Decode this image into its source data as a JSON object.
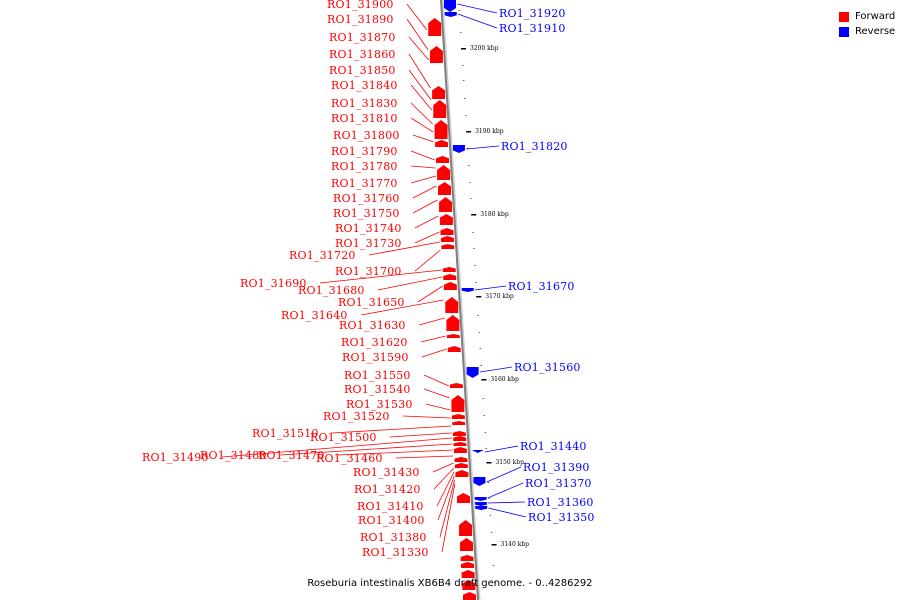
{
  "caption": "Roseburia intestinalis XB6B4 draft genome. - 0..4286292",
  "legend": [
    {
      "label": "Forward",
      "color": "#ff0000"
    },
    {
      "label": "Reverse",
      "color": "#0000ff"
    }
  ],
  "colors": {
    "forward": "#ff0000",
    "reverse": "#0000ff",
    "backbone": "#7f7f7f"
  },
  "kbp_labels": [
    "3200 kbp",
    "3190 kbp",
    "3180 kbp",
    "3170 kbp",
    "3160 kbp",
    "3150 kbp",
    "3140 kbp"
  ],
  "forward_genes": [
    "RO1_31900",
    "RO1_31890",
    "RO1_31870",
    "RO1_31860",
    "RO1_31850",
    "RO1_31840",
    "RO1_31830",
    "RO1_31810",
    "RO1_31800",
    "RO1_31790",
    "RO1_31780",
    "RO1_31770",
    "RO1_31760",
    "RO1_31750",
    "RO1_31740",
    "RO1_31730",
    "RO1_31720",
    "RO1_31700",
    "RO1_31690",
    "RO1_31680",
    "RO1_31650",
    "RO1_31640",
    "RO1_31630",
    "RO1_31620",
    "RO1_31590",
    "RO1_31550",
    "RO1_31540",
    "RO1_31530",
    "RO1_31520",
    "RO1_31510",
    "RO1_31500",
    "RO1_31490",
    "RO1_31480",
    "RO1_31470",
    "RO1_31460",
    "RO1_31430",
    "RO1_31420",
    "RO1_31410",
    "RO1_31400",
    "RO1_31380",
    "RO1_31330"
  ],
  "reverse_genes": [
    "RO1_31920",
    "RO1_31910",
    "RO1_31820",
    "RO1_31670",
    "RO1_31560",
    "RO1_31440",
    "RO1_31390",
    "RO1_31370",
    "RO1_31360",
    "RO1_31350"
  ]
}
